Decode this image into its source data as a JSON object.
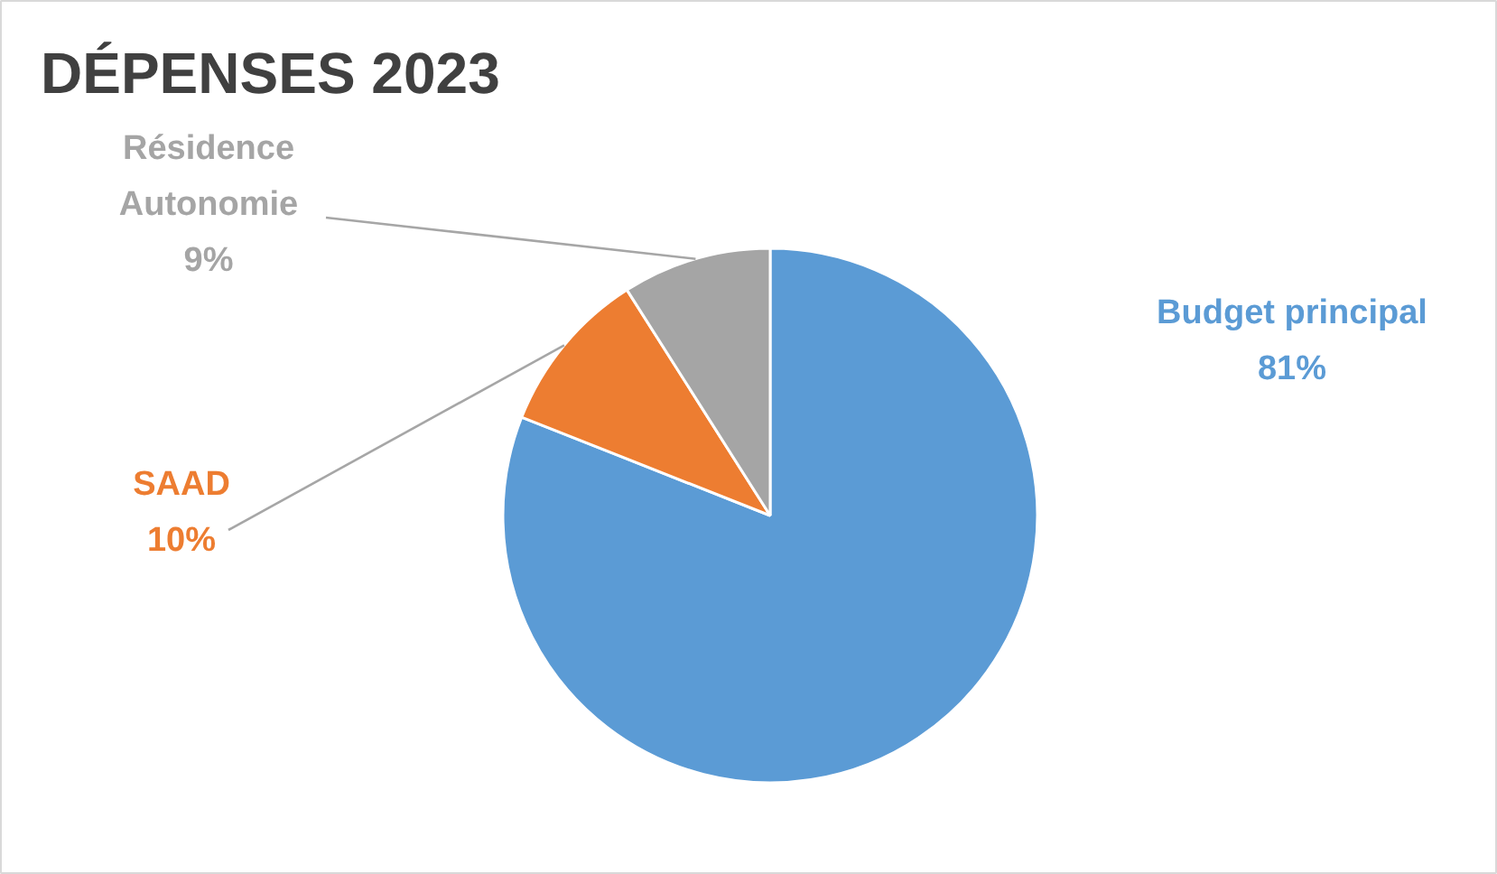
{
  "chart_data": {
    "type": "pie",
    "title": "DÉPENSES 2023",
    "categories": [
      "Budget principal",
      "SAAD",
      "Résidence Autonomie"
    ],
    "values": [
      81,
      10,
      9
    ],
    "colors": [
      "#5b9bd5",
      "#ed7d31",
      "#a5a5a5"
    ],
    "value_labels": [
      "81%",
      "10%",
      "9%"
    ]
  }
}
